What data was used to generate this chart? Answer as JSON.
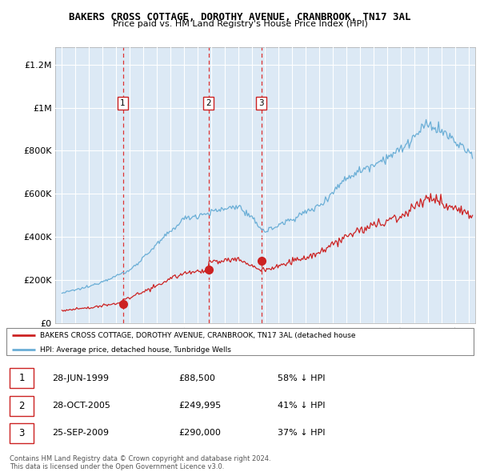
{
  "title": "BAKERS CROSS COTTAGE, DOROTHY AVENUE, CRANBROOK, TN17 3AL",
  "subtitle": "Price paid vs. HM Land Registry's House Price Index (HPI)",
  "ylabel_ticks": [
    "£0",
    "£200K",
    "£400K",
    "£600K",
    "£800K",
    "£1M",
    "£1.2M"
  ],
  "ytick_values": [
    0,
    200000,
    400000,
    600000,
    800000,
    1000000,
    1200000
  ],
  "ylim": [
    0,
    1280000
  ],
  "xlim_start": 1994.5,
  "xlim_end": 2025.5,
  "hpi_color": "#6aaed6",
  "price_color": "#cc2222",
  "sale_dates": [
    1999.49,
    2005.82,
    2009.73
  ],
  "sale_prices": [
    88500,
    249995,
    290000
  ],
  "sale_labels": [
    "1",
    "2",
    "3"
  ],
  "legend_label_price": "BAKERS CROSS COTTAGE, DOROTHY AVENUE, CRANBROOK, TN17 3AL (detached house",
  "legend_label_hpi": "HPI: Average price, detached house, Tunbridge Wells",
  "table_rows": [
    [
      "1",
      "28-JUN-1999",
      "£88,500",
      "58% ↓ HPI"
    ],
    [
      "2",
      "28-OCT-2005",
      "£249,995",
      "41% ↓ HPI"
    ],
    [
      "3",
      "25-SEP-2009",
      "£290,000",
      "37% ↓ HPI"
    ]
  ],
  "footer": "Contains HM Land Registry data © Crown copyright and database right 2024.\nThis data is licensed under the Open Government Licence v3.0.",
  "background_color": "#ffffff",
  "chart_bg_color": "#dce9f5",
  "grid_color": "#ffffff"
}
